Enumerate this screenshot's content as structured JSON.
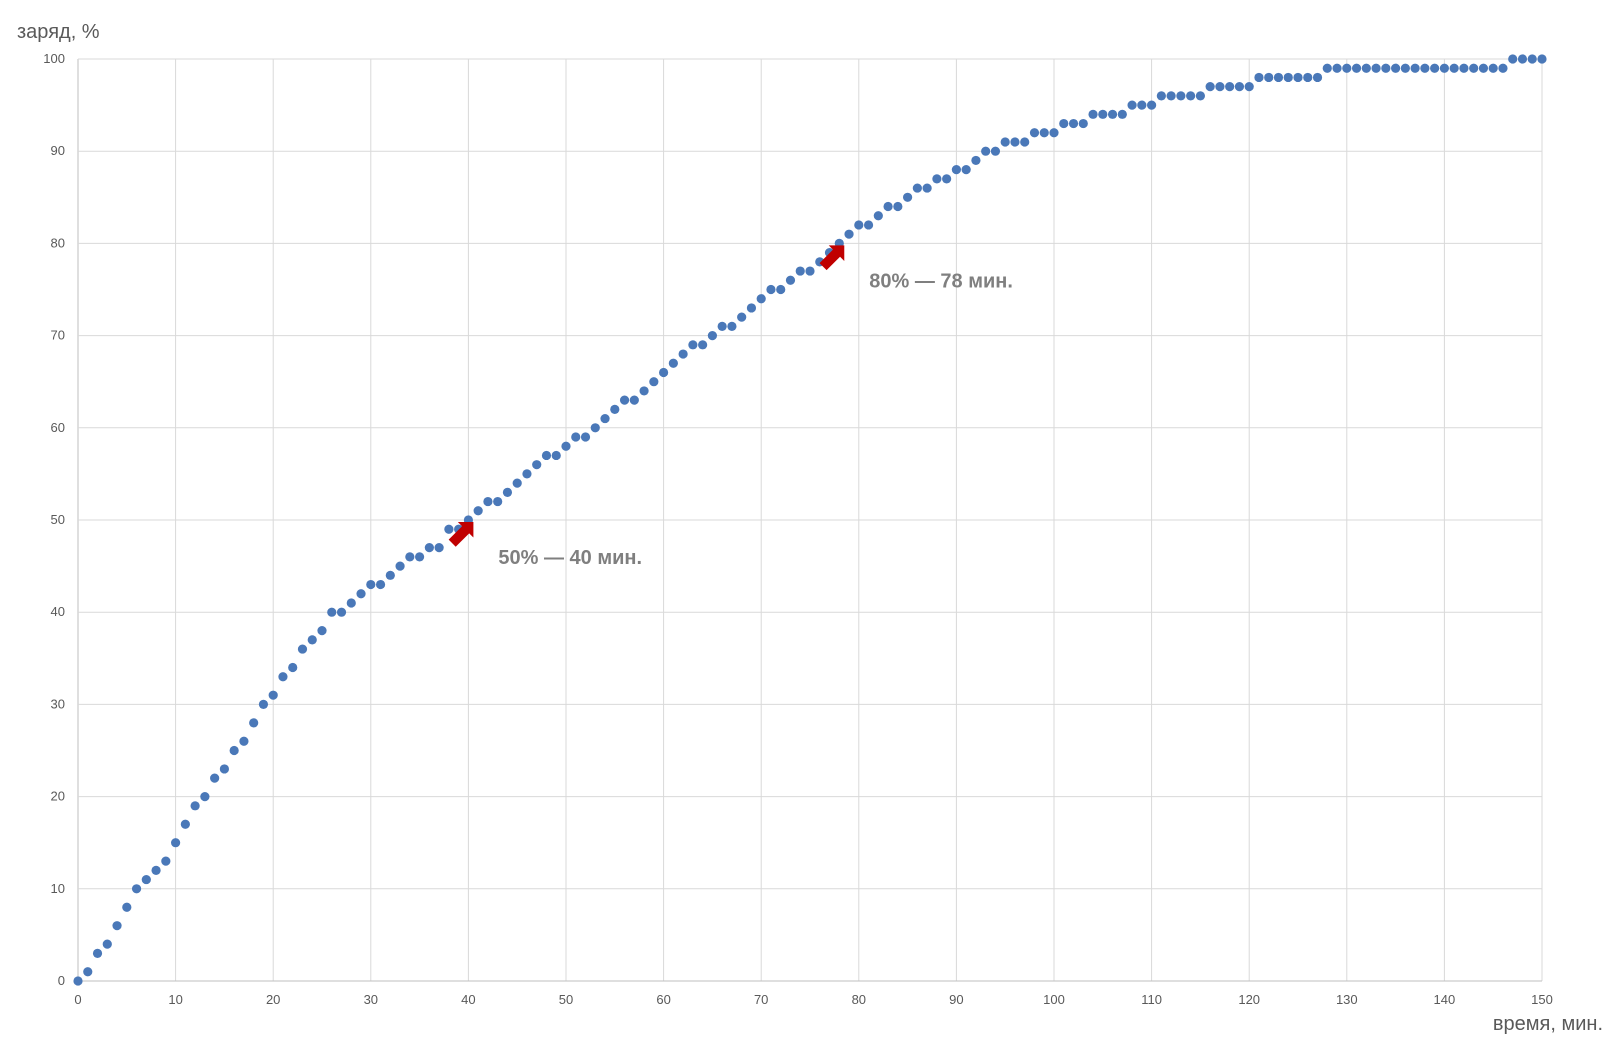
{
  "chart_data": {
    "type": "scatter",
    "title": "",
    "xlabel": "время, мин.",
    "ylabel": "заряд, %",
    "xlim": [
      0,
      150
    ],
    "ylim": [
      0,
      100
    ],
    "x_ticks": [
      0,
      10,
      20,
      30,
      40,
      50,
      60,
      70,
      80,
      90,
      100,
      110,
      120,
      130,
      140,
      150
    ],
    "y_ticks": [
      0,
      10,
      20,
      30,
      40,
      50,
      60,
      70,
      80,
      90,
      100
    ],
    "grid": true,
    "legend": "none",
    "marker_color": "#4a78b8",
    "series": [
      {
        "x": [
          0,
          1,
          2,
          3,
          4,
          5,
          6,
          7,
          8,
          9,
          10,
          11,
          12,
          13,
          14,
          15,
          16,
          17,
          18,
          19,
          20,
          21,
          22,
          23,
          24,
          25,
          26,
          27,
          28,
          29,
          30,
          31,
          32,
          33,
          34,
          35,
          36,
          37,
          38,
          39,
          40,
          41,
          42,
          43,
          44,
          45,
          46,
          47,
          48,
          49,
          50,
          51,
          52,
          53,
          54,
          55,
          56,
          57,
          58,
          59,
          60,
          61,
          62,
          63,
          64,
          65,
          66,
          67,
          68,
          69,
          70,
          71,
          72,
          73,
          74,
          75,
          76,
          77,
          78,
          79,
          80,
          81,
          82,
          83,
          84,
          85,
          86,
          87,
          88,
          89,
          90,
          91,
          92,
          93,
          94,
          95,
          96,
          97,
          98,
          99,
          100,
          101,
          102,
          103,
          104,
          105,
          106,
          107,
          108,
          109,
          110,
          111,
          112,
          113,
          114,
          115,
          116,
          117,
          118,
          119,
          120,
          121,
          122,
          123,
          124,
          125,
          126,
          127,
          128,
          129,
          130,
          131,
          132,
          133,
          134,
          135,
          136,
          137,
          138,
          139,
          140,
          141,
          142,
          143,
          144,
          145,
          146,
          147,
          148,
          149,
          150
        ],
        "y": [
          0,
          1,
          3,
          4,
          6,
          8,
          10,
          11,
          12,
          13,
          15,
          17,
          19,
          20,
          22,
          23,
          25,
          26,
          28,
          30,
          31,
          33,
          34,
          36,
          37,
          38,
          40,
          40,
          41,
          42,
          43,
          43,
          44,
          45,
          46,
          46,
          47,
          47,
          49,
          49,
          50,
          51,
          52,
          52,
          53,
          54,
          55,
          56,
          57,
          57,
          58,
          59,
          59,
          60,
          61,
          62,
          63,
          63,
          64,
          65,
          66,
          67,
          68,
          69,
          69,
          70,
          71,
          71,
          72,
          73,
          74,
          75,
          75,
          76,
          77,
          77,
          78,
          79,
          80,
          81,
          82,
          82,
          83,
          84,
          84,
          85,
          86,
          86,
          87,
          87,
          88,
          88,
          89,
          90,
          90,
          91,
          91,
          91,
          92,
          92,
          92,
          93,
          93,
          93,
          94,
          94,
          94,
          94,
          95,
          95,
          95,
          96,
          96,
          96,
          96,
          96,
          97,
          97,
          97,
          97,
          97,
          98,
          98,
          98,
          98,
          98,
          98,
          98,
          99,
          99,
          99,
          99,
          99,
          99,
          99,
          99,
          99,
          99,
          99,
          99,
          99,
          99,
          99,
          99,
          99,
          99,
          99,
          100,
          100,
          100,
          100
        ]
      }
    ],
    "annotations": [
      {
        "text": "50% — 40 мин.",
        "x": 40,
        "y": 50
      },
      {
        "text": "80% — 78 мин.",
        "x": 78,
        "y": 80
      }
    ]
  }
}
